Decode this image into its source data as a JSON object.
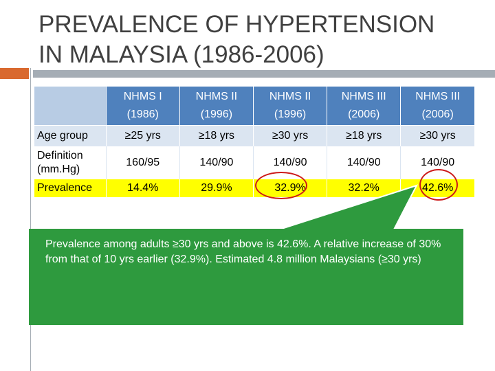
{
  "title": {
    "line1": "PREVALENCE OF HYPERTENSION",
    "line2": "IN MALAYSIA (1986-2006)"
  },
  "table": {
    "columns": [
      {
        "name": "NHMS I",
        "year": "(1986)"
      },
      {
        "name": "NHMS II",
        "year": "(1996)"
      },
      {
        "name": "NHMS II",
        "year": "(1996)"
      },
      {
        "name": "NHMS III",
        "year": "(2006)"
      },
      {
        "name": "NHMS III",
        "year": "(2006)"
      }
    ],
    "rows": [
      {
        "label": "Age group",
        "values": [
          "≥25 yrs",
          "≥18 yrs",
          "≥30 yrs",
          "≥18 yrs",
          "≥30 yrs"
        ]
      },
      {
        "label": "Definition (mm.Hg)",
        "values": [
          "160/95",
          "140/90",
          "140/90",
          "140/90",
          "140/90"
        ]
      },
      {
        "label": "Prevalence",
        "values": [
          "14.4%",
          "29.9%",
          "32.9%",
          "32.2%",
          "42.6%"
        ]
      }
    ]
  },
  "callout": {
    "text": "Prevalence among adults ≥30 yrs and above is 42.6%.  A relative increase of 30% from that of 10 yrs earlier (32.9%).  Estimated 4.8 million Malaysians (≥30 yrs)"
  },
  "colors": {
    "header_blue": "#4f81bd",
    "highlight_yellow": "#ffff00",
    "callout_green": "#2e9a3e",
    "circle_red": "#cc1a1a",
    "accent_orange": "#d9692e"
  }
}
